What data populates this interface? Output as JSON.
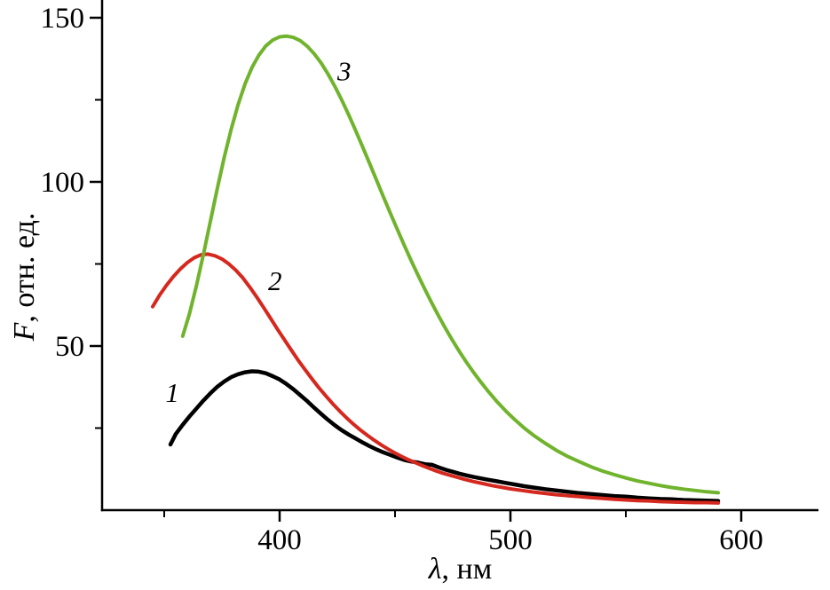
{
  "chart_data": {
    "type": "line",
    "title": "",
    "background": "#ffffff",
    "axes_color": "#000000",
    "grid": false,
    "legend": "none",
    "xlabel": {
      "italic": "λ",
      "rest": ", нм"
    },
    "ylabel": {
      "italic": "F",
      "rest": ", отн. ед."
    },
    "xlim": [
      323,
      632
    ],
    "ylim": [
      0,
      155
    ],
    "x_ticks": {
      "major": [
        {
          "value": 400,
          "label": "400"
        },
        {
          "value": 500,
          "label": "500"
        },
        {
          "value": 600,
          "label": "600"
        }
      ],
      "minor": [
        350,
        450,
        550
      ]
    },
    "y_ticks": {
      "major": [
        {
          "value": 50,
          "label": "50"
        },
        {
          "value": 100,
          "label": "100"
        },
        {
          "value": 150,
          "label": "150"
        }
      ],
      "minor": [
        25,
        75,
        125
      ]
    },
    "series": [
      {
        "id": 1,
        "label": "1",
        "color": "#000000",
        "stroke_width": 4.5,
        "label_xy": [
          353.5,
          33
        ],
        "points": [
          [
            352.7,
            20
          ],
          [
            355,
            23.2
          ],
          [
            358,
            26
          ],
          [
            361,
            28.6
          ],
          [
            364,
            31
          ],
          [
            367,
            33.4
          ],
          [
            370,
            35.6
          ],
          [
            373,
            37.6
          ],
          [
            376,
            39.2
          ],
          [
            379,
            40.5
          ],
          [
            382,
            41.4
          ],
          [
            385,
            42
          ],
          [
            388,
            42.3
          ],
          [
            391,
            42.2
          ],
          [
            394,
            41.7
          ],
          [
            397,
            40.8
          ],
          [
            400,
            39.8
          ],
          [
            403,
            38.4
          ],
          [
            406,
            36.8
          ],
          [
            409,
            35
          ],
          [
            412,
            33.2
          ],
          [
            415,
            31.2
          ],
          [
            418,
            29.3
          ],
          [
            421,
            27.5
          ],
          [
            424,
            25.8
          ],
          [
            427,
            24.3
          ],
          [
            430,
            23
          ],
          [
            433,
            21.8
          ],
          [
            436,
            20.6
          ],
          [
            439,
            19.5
          ],
          [
            442,
            18.5
          ],
          [
            445,
            17.6
          ],
          [
            448,
            16.8
          ],
          [
            451,
            16
          ],
          [
            454,
            15.3
          ],
          [
            457,
            14.8
          ],
          [
            460,
            14.5
          ],
          [
            463,
            14
          ],
          [
            466,
            13.8
          ],
          [
            469,
            13
          ],
          [
            472,
            12.3
          ],
          [
            475,
            11.7
          ],
          [
            478,
            11.1
          ],
          [
            481,
            10.6
          ],
          [
            484,
            10.1
          ],
          [
            487,
            9.7
          ],
          [
            490,
            9.3
          ],
          [
            494,
            8.8
          ],
          [
            498,
            8.3
          ],
          [
            502,
            7.8
          ],
          [
            506,
            7.3
          ],
          [
            510,
            6.9
          ],
          [
            515,
            6.4
          ],
          [
            520,
            6
          ],
          [
            525,
            5.6
          ],
          [
            530,
            5.2
          ],
          [
            535,
            4.9
          ],
          [
            540,
            4.6
          ],
          [
            545,
            4.3
          ],
          [
            550,
            4.1
          ],
          [
            555,
            3.8
          ],
          [
            560,
            3.6
          ],
          [
            565,
            3.4
          ],
          [
            570,
            3.3
          ],
          [
            575,
            3.1
          ],
          [
            580,
            3
          ],
          [
            585,
            2.9
          ],
          [
            590,
            2.8
          ]
        ]
      },
      {
        "id": 2,
        "label": "2",
        "color": "#d5281e",
        "stroke_width": 4,
        "label_xy": [
          398,
          67
        ],
        "points": [
          [
            345,
            62
          ],
          [
            348,
            65.5
          ],
          [
            351,
            68.5
          ],
          [
            354,
            71.2
          ],
          [
            357,
            73.5
          ],
          [
            360,
            75.4
          ],
          [
            363,
            76.9
          ],
          [
            366,
            77.8
          ],
          [
            369,
            78
          ],
          [
            372,
            77.5
          ],
          [
            375,
            76.5
          ],
          [
            378,
            75
          ],
          [
            381,
            73.1
          ],
          [
            384,
            70.8
          ],
          [
            387,
            68
          ],
          [
            390,
            65
          ],
          [
            393,
            61.8
          ],
          [
            396,
            58.5
          ],
          [
            399,
            55.2
          ],
          [
            402,
            52
          ],
          [
            405,
            48.8
          ],
          [
            408,
            45.7
          ],
          [
            411,
            42.8
          ],
          [
            414,
            40
          ],
          [
            417,
            37.3
          ],
          [
            420,
            34.8
          ],
          [
            423,
            32.4
          ],
          [
            426,
            30.2
          ],
          [
            429,
            28.1
          ],
          [
            432,
            26.2
          ],
          [
            435,
            24.4
          ],
          [
            438,
            22.8
          ],
          [
            441,
            21.3
          ],
          [
            444,
            19.9
          ],
          [
            447,
            18.6
          ],
          [
            450,
            17.4
          ],
          [
            453,
            16.3
          ],
          [
            456,
            15.3
          ],
          [
            459,
            14.4
          ],
          [
            462,
            13.5
          ],
          [
            465,
            12.7
          ],
          [
            468,
            11.9
          ],
          [
            471,
            11.2
          ],
          [
            474,
            10.6
          ],
          [
            477,
            10
          ],
          [
            480,
            9.4
          ],
          [
            484,
            8.7
          ],
          [
            488,
            8.1
          ],
          [
            492,
            7.5
          ],
          [
            496,
            7
          ],
          [
            500,
            6.5
          ],
          [
            505,
            6
          ],
          [
            510,
            5.5
          ],
          [
            515,
            5.1
          ],
          [
            520,
            4.7
          ],
          [
            525,
            4.4
          ],
          [
            530,
            4.1
          ],
          [
            535,
            3.8
          ],
          [
            540,
            3.6
          ],
          [
            545,
            3.3
          ],
          [
            550,
            3.1
          ],
          [
            555,
            2.9
          ],
          [
            560,
            2.8
          ],
          [
            565,
            2.6
          ],
          [
            570,
            2.5
          ],
          [
            575,
            2.4
          ],
          [
            580,
            2.3
          ],
          [
            585,
            2.3
          ],
          [
            590,
            2.2
          ]
        ]
      },
      {
        "id": 3,
        "label": "3",
        "color": "#70b32d",
        "stroke_width": 4,
        "label_xy": [
          428,
          131
        ],
        "points": [
          [
            358,
            53
          ],
          [
            361,
            60
          ],
          [
            364,
            68.5
          ],
          [
            367,
            78
          ],
          [
            370,
            88
          ],
          [
            373,
            98
          ],
          [
            376,
            107.5
          ],
          [
            379,
            116
          ],
          [
            382,
            123.5
          ],
          [
            385,
            129.8
          ],
          [
            388,
            134.8
          ],
          [
            391,
            138.6
          ],
          [
            394,
            141.4
          ],
          [
            397,
            143.2
          ],
          [
            400,
            144.2
          ],
          [
            403,
            144.4
          ],
          [
            406,
            144
          ],
          [
            409,
            143
          ],
          [
            412,
            141.3
          ],
          [
            415,
            139
          ],
          [
            418,
            136.2
          ],
          [
            421,
            132.8
          ],
          [
            424,
            129
          ],
          [
            427,
            124.8
          ],
          [
            430,
            120.3
          ],
          [
            433,
            115.5
          ],
          [
            436,
            110.6
          ],
          [
            439,
            105.6
          ],
          [
            442,
            100.5
          ],
          [
            445,
            95.4
          ],
          [
            448,
            90.4
          ],
          [
            451,
            85.5
          ],
          [
            454,
            80.7
          ],
          [
            457,
            76
          ],
          [
            460,
            71.5
          ],
          [
            463,
            67.2
          ],
          [
            466,
            63
          ],
          [
            469,
            59
          ],
          [
            472,
            55.2
          ],
          [
            475,
            51.6
          ],
          [
            478,
            48.2
          ],
          [
            481,
            45
          ],
          [
            484,
            42
          ],
          [
            487,
            39.2
          ],
          [
            490,
            36.5
          ],
          [
            494,
            33.2
          ],
          [
            498,
            30.2
          ],
          [
            502,
            27.5
          ],
          [
            506,
            25
          ],
          [
            510,
            22.8
          ],
          [
            515,
            20.4
          ],
          [
            520,
            18.2
          ],
          [
            525,
            16.3
          ],
          [
            530,
            14.7
          ],
          [
            535,
            13.2
          ],
          [
            540,
            11.9
          ],
          [
            545,
            10.8
          ],
          [
            550,
            9.8
          ],
          [
            555,
            8.9
          ],
          [
            560,
            8.2
          ],
          [
            565,
            7.5
          ],
          [
            570,
            6.9
          ],
          [
            575,
            6.4
          ],
          [
            580,
            6
          ],
          [
            585,
            5.6
          ],
          [
            590,
            5.3
          ]
        ]
      }
    ]
  }
}
